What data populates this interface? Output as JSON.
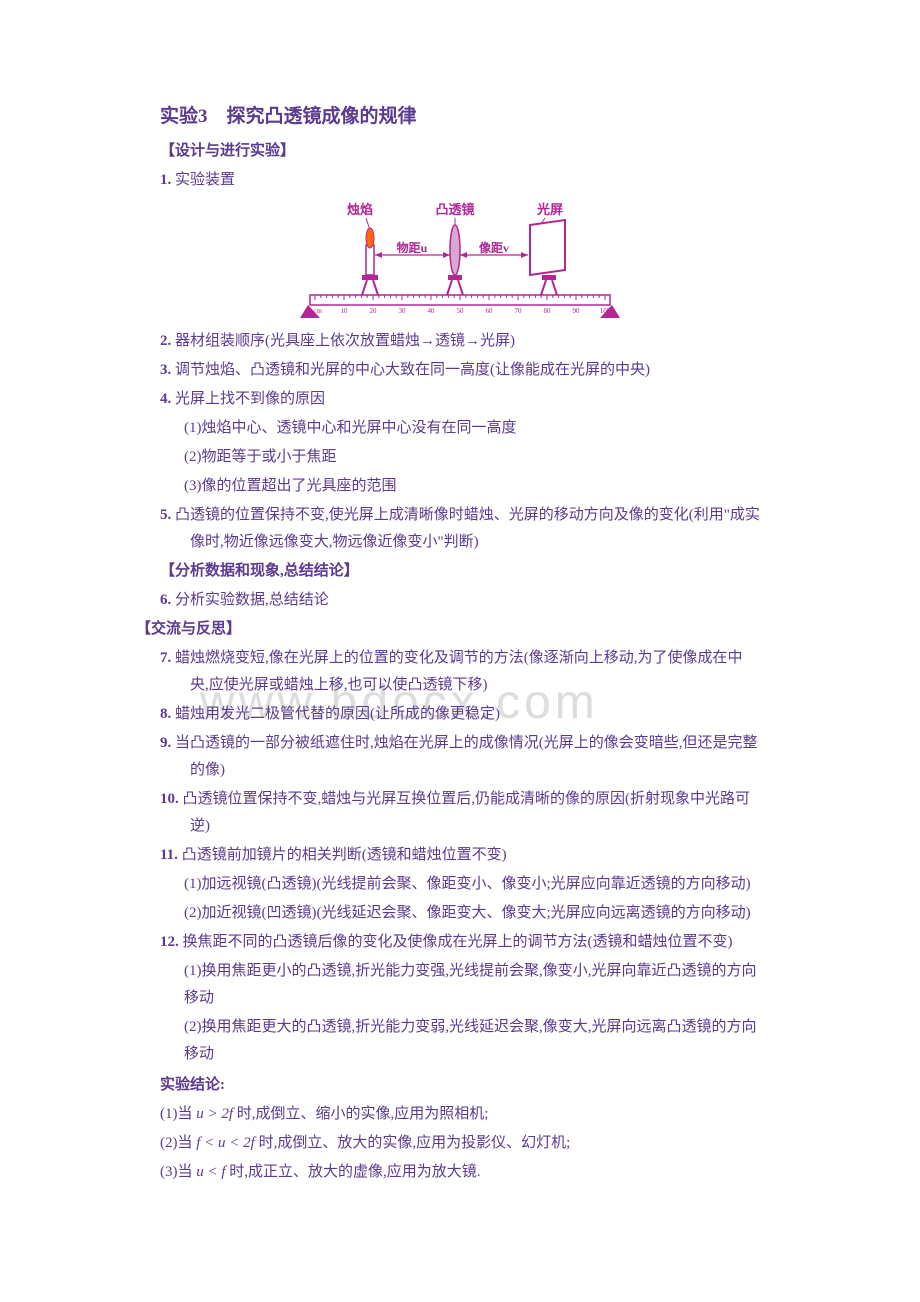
{
  "title": "实验3　探究凸透镜成像的规律",
  "section1": "【设计与进行实验】",
  "item1": {
    "num": "1.",
    "text": "实验装置"
  },
  "diagram": {
    "candle_label": "烛焰",
    "lens_label": "凸透镜",
    "screen_label": "光屏",
    "wuju_label": "物距u",
    "xiangju_label": "像距v",
    "ruler_ticks": [
      "0 cm",
      "10",
      "20",
      "30",
      "40",
      "50",
      "60",
      "70",
      "80",
      "90",
      "100"
    ],
    "color_dark": "#b22795",
    "color_flame": "#c06fb0",
    "color_screen": "#ffffff",
    "flame_orange": "#ff6b00"
  },
  "item2": {
    "num": "2.",
    "text": "器材组装顺序(光具座上依次放置蜡烛→透镜→光屏)"
  },
  "item3": {
    "num": "3.",
    "text": "调节烛焰、凸透镜和光屏的中心大致在同一高度(让像能成在光屏的中央)"
  },
  "item4": {
    "num": "4.",
    "text": "光屏上找不到像的原因"
  },
  "item4_1": "(1)烛焰中心、透镜中心和光屏中心没有在同一高度",
  "item4_2": "(2)物距等于或小于焦距",
  "item4_3": "(3)像的位置超出了光具座的范围",
  "item5": {
    "num": "5.",
    "text": "凸透镜的位置保持不变,使光屏上成清晰像时蜡烛、光屏的移动方向及像的变化(利用\"成实像时,物近像远像变大,物远像近像变小\"判断)"
  },
  "section2": "【分析数据和现象,总结结论】",
  "item6": {
    "num": "6.",
    "text": "分析实验数据,总结结论"
  },
  "section3": "【交流与反思】",
  "item7": {
    "num": "7.",
    "text": "蜡烛燃烧变短,像在光屏上的位置的变化及调节的方法(像逐渐向上移动,为了使像成在中央,应使光屏或蜡烛上移,也可以使凸透镜下移)"
  },
  "item8": {
    "num": "8.",
    "text": "蜡烛用发光二极管代替的原因(让所成的像更稳定)"
  },
  "item9": {
    "num": "9.",
    "text": "当凸透镜的一部分被纸遮住时,烛焰在光屏上的成像情况(光屏上的像会变暗些,但还是完整的像)"
  },
  "item10": {
    "num": "10.",
    "text": "凸透镜位置保持不变,蜡烛与光屏互换位置后,仍能成清晰的像的原因(折射现象中光路可逆)"
  },
  "item11": {
    "num": "11.",
    "text": "凸透镜前加镜片的相关判断(透镜和蜡烛位置不变)"
  },
  "item11_1": "(1)加远视镜(凸透镜)(光线提前会聚、像距变小、像变小;光屏应向靠近透镜的方向移动)",
  "item11_2": "(2)加近视镜(凹透镜)(光线延迟会聚、像距变大、像变大;光屏应向远离透镜的方向移动)",
  "item12": {
    "num": "12.",
    "text": "换焦距不同的凸透镜后像的变化及使像成在光屏上的调节方法(透镜和蜡烛位置不变)"
  },
  "item12_1": "(1)换用焦距更小的凸透镜,折光能力变强,光线提前会聚,像变小,光屏向靠近凸透镜的方向移动",
  "item12_2": "(2)换用焦距更大的凸透镜,折光能力变弱,光线延迟会聚,像变大,光屏向远离凸透镜的方向移动",
  "conclusion_header": "实验结论:",
  "conc1_a": "(1)当 ",
  "conc1_b": "u > 2f",
  "conc1_c": " 时,成倒立、缩小的实像,应用为照相机;",
  "conc2_a": "(2)当 ",
  "conc2_b": "f < u < 2f",
  "conc2_c": " 时,成倒立、放大的实像,应用为投影仪、幻灯机;",
  "conc3_a": "(3)当 ",
  "conc3_b": "u < f",
  "conc3_c": " 时,成正立、放大的虚像,应用为放大镜.",
  "watermark": "www.bdocx.com"
}
